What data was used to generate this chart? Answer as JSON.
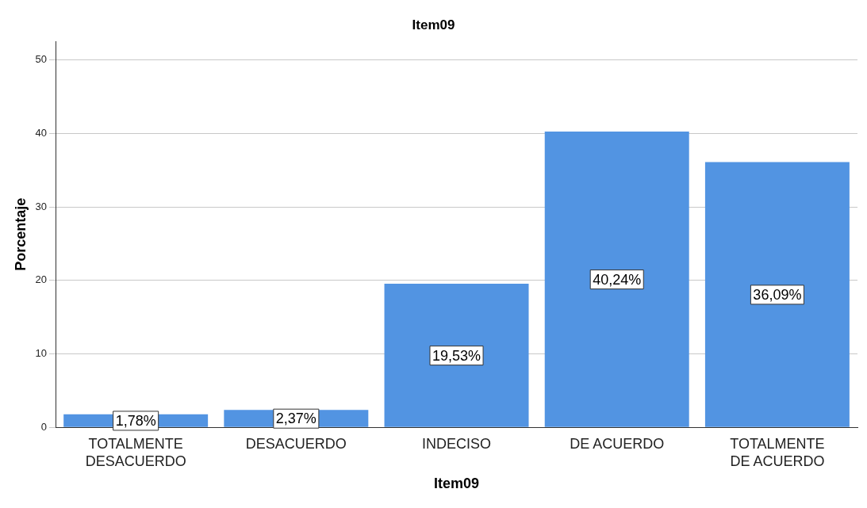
{
  "chart_data": {
    "type": "bar",
    "title": "Item09",
    "xlabel": "Item09",
    "ylabel": "Porcentaje",
    "categories": [
      "TOTALMENTE DESACUERDO",
      "DESACUERDO",
      "INDECISO",
      "DE ACUERDO",
      "TOTALMENTE DE ACUERDO"
    ],
    "values": [
      1.78,
      2.37,
      19.53,
      40.24,
      36.09
    ],
    "value_labels": [
      "1,78%",
      "2,37%",
      "19,53%",
      "40,24%",
      "36,09%"
    ],
    "color": "#5294e2",
    "ylim": [
      0,
      52.5
    ],
    "yticks": [
      0,
      10,
      20,
      30,
      40,
      50
    ],
    "grid": "y",
    "legend": false
  }
}
